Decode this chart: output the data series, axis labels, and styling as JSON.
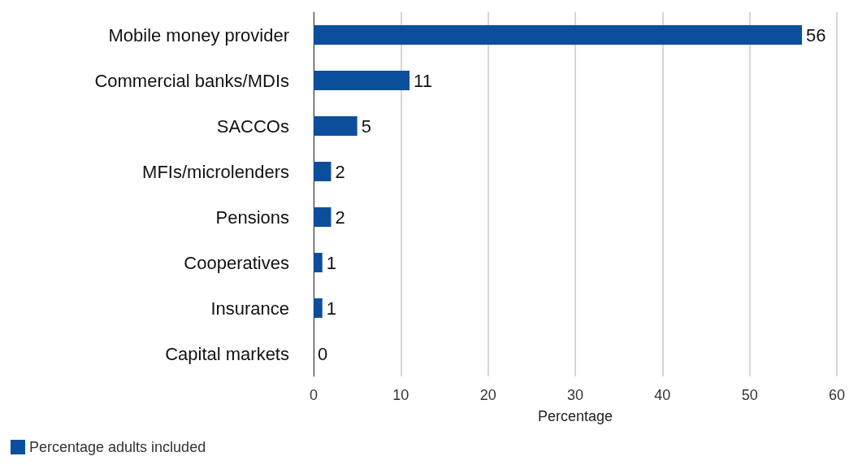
{
  "chart_data": {
    "type": "bar",
    "orientation": "horizontal",
    "categories": [
      "Mobile money provider",
      "Commercial banks/MDIs",
      "SACCOs",
      "MFIs/microlenders",
      "Pensions",
      "Cooperatives",
      "Insurance",
      "Capital markets"
    ],
    "series": [
      {
        "name": "Percentage adults included",
        "color": "#0b4f9c",
        "values": [
          56,
          11,
          5,
          2,
          2,
          1,
          1,
          0
        ]
      }
    ],
    "xlim": [
      0,
      60
    ],
    "xticks": [
      0,
      10,
      20,
      30,
      40,
      50,
      60
    ],
    "xlabel": "Percentage",
    "grid": "x",
    "legend": "bottom left",
    "data_labels": true
  }
}
